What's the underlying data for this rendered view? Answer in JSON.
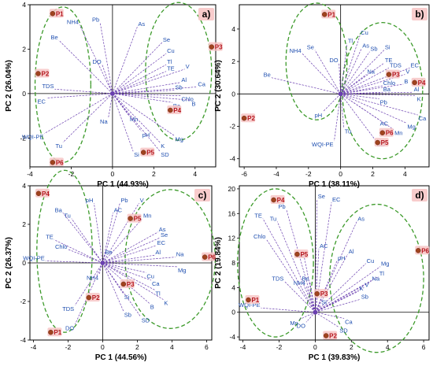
{
  "chart_data": [
    {
      "type": "scatter",
      "panel": "a)",
      "xlabel": "PC 1 (44.93%)",
      "ylabel": "PC 2 (26.04%)",
      "xlim": [
        -4,
        5
      ],
      "ylim": [
        -3.3,
        4
      ],
      "xticks": [
        -4,
        -2,
        0,
        2,
        4
      ],
      "yticks": [
        -2,
        0,
        2,
        4
      ],
      "observations": [
        {
          "label": "P1",
          "x": -2.9,
          "y": 3.6
        },
        {
          "label": "P2",
          "x": -3.6,
          "y": 0.9
        },
        {
          "label": "P3",
          "x": 4.8,
          "y": 2.1
        },
        {
          "label": "P4",
          "x": 2.8,
          "y": -0.75
        },
        {
          "label": "P5",
          "x": 1.5,
          "y": -2.65
        },
        {
          "label": "P6",
          "x": -2.9,
          "y": -3.1
        }
      ],
      "variables": [
        {
          "label": "NH4",
          "x": -1.6,
          "y": 3.1
        },
        {
          "label": "Pb",
          "x": -0.6,
          "y": 3.2
        },
        {
          "label": "As",
          "x": 1.2,
          "y": 3.0
        },
        {
          "label": "Be",
          "x": -2.6,
          "y": 2.4
        },
        {
          "label": "Se",
          "x": 2.4,
          "y": 2.3
        },
        {
          "label": "Cu",
          "x": 2.6,
          "y": 1.8
        },
        {
          "label": "DO",
          "x": -0.5,
          "y": 1.3
        },
        {
          "label": "Tl",
          "x": 2.6,
          "y": 1.3
        },
        {
          "label": "V",
          "x": 3.5,
          "y": 1.1
        },
        {
          "label": "TE",
          "x": 2.6,
          "y": 1.0
        },
        {
          "label": "TDS",
          "x": -2.8,
          "y": 0.2
        },
        {
          "label": "Al",
          "x": 3.3,
          "y": 0.5
        },
        {
          "label": "Ca",
          "x": 4.1,
          "y": 0.3
        },
        {
          "label": "EC",
          "x": -3.2,
          "y": -0.2
        },
        {
          "label": "Sb",
          "x": 3.0,
          "y": 0.15
        },
        {
          "label": "Chlo",
          "x": 3.3,
          "y": -0.1
        },
        {
          "label": "B",
          "x": 3.8,
          "y": -0.3
        },
        {
          "label": "Ba",
          "x": 2.9,
          "y": -0.4
        },
        {
          "label": "Na",
          "x": -0.2,
          "y": -1.1
        },
        {
          "label": "Mn",
          "x": 0.8,
          "y": -1.0
        },
        {
          "label": "pH",
          "x": 1.4,
          "y": -1.7
        },
        {
          "label": "Mg",
          "x": 3.0,
          "y": -1.9
        },
        {
          "label": "WQI-PE",
          "x": -3.3,
          "y": -1.8
        },
        {
          "label": "Tu",
          "x": -2.4,
          "y": -2.2
        },
        {
          "label": "Si",
          "x": 1.0,
          "y": -2.6
        },
        {
          "label": "SD",
          "x": 2.3,
          "y": -2.6
        },
        {
          "label": "K",
          "x": 2.3,
          "y": -2.2
        }
      ]
    },
    {
      "type": "scatter",
      "panel": "b)",
      "xlabel": "PC 1 (38.11%)",
      "ylabel": "PC 2 (30.64%)",
      "xlim": [
        -6.3,
        5.5
      ],
      "ylim": [
        -4.5,
        5.5
      ],
      "xticks": [
        -6,
        -4,
        -2,
        0,
        2,
        4
      ],
      "yticks": [
        -4,
        -2,
        0,
        2,
        4
      ],
      "observations": [
        {
          "label": "P1",
          "x": -1.0,
          "y": 4.9
        },
        {
          "label": "P2",
          "x": -6.0,
          "y": -1.5
        },
        {
          "label": "P3",
          "x": 3.0,
          "y": 1.2
        },
        {
          "label": "P4",
          "x": 4.6,
          "y": 0.7
        },
        {
          "label": "P5",
          "x": 2.3,
          "y": -3.0
        },
        {
          "label": "P6",
          "x": 2.6,
          "y": -2.4
        }
      ],
      "variables": [
        {
          "label": "Se",
          "x": -1.6,
          "y": 2.7
        },
        {
          "label": "NH4",
          "x": -2.4,
          "y": 2.5
        },
        {
          "label": "Cu",
          "x": 1.2,
          "y": 3.6
        },
        {
          "label": "Tl",
          "x": 0.4,
          "y": 3.1
        },
        {
          "label": "As",
          "x": 1.3,
          "y": 2.8
        },
        {
          "label": "Sb",
          "x": 1.8,
          "y": 2.6
        },
        {
          "label": "Si",
          "x": 2.7,
          "y": 2.7
        },
        {
          "label": "Be",
          "x": -4.3,
          "y": 1.0
        },
        {
          "label": "DO",
          "x": -0.1,
          "y": 1.9
        },
        {
          "label": "TE",
          "x": 2.7,
          "y": 1.9
        },
        {
          "label": "TDS",
          "x": 3.0,
          "y": 1.6
        },
        {
          "label": "EC",
          "x": 4.3,
          "y": 1.6
        },
        {
          "label": "Na",
          "x": 1.6,
          "y": 1.2
        },
        {
          "label": "V",
          "x": 4.0,
          "y": 1.2
        },
        {
          "label": "B",
          "x": 3.9,
          "y": 0.6
        },
        {
          "label": "Chlo",
          "x": 2.6,
          "y": 0.5
        },
        {
          "label": "Al",
          "x": 4.5,
          "y": 0.1
        },
        {
          "label": "Ba",
          "x": 2.6,
          "y": 0.1
        },
        {
          "label": "K",
          "x": 4.7,
          "y": -0.1
        },
        {
          "label": "Pb",
          "x": 2.4,
          "y": -0.3
        },
        {
          "label": "pH",
          "x": -1.1,
          "y": -1.1
        },
        {
          "label": "Ca",
          "x": 4.8,
          "y": -1.3
        },
        {
          "label": "AC",
          "x": 2.4,
          "y": -1.6
        },
        {
          "label": "Mg",
          "x": 4.1,
          "y": -1.8
        },
        {
          "label": "Tu",
          "x": 0.2,
          "y": -2.1
        },
        {
          "label": "Mn",
          "x": 3.3,
          "y": -2.2
        },
        {
          "label": "WQI-PE",
          "x": -0.4,
          "y": -2.9
        },
        {
          "label": "SD",
          "x": 2.2,
          "y": -2.9
        }
      ]
    },
    {
      "type": "scatter",
      "panel": "c)",
      "xlabel": "PC 1 (44.56%)",
      "ylabel": "PC 2 (26.37%)",
      "xlim": [
        -4.2,
        6.3
      ],
      "ylim": [
        -4,
        4
      ],
      "xticks": [
        -4,
        -2,
        0,
        2,
        4,
        6
      ],
      "yticks": [
        -4,
        -2,
        0,
        2,
        4
      ],
      "observations": [
        {
          "label": "P1",
          "x": -3.0,
          "y": -3.6
        },
        {
          "label": "P2",
          "x": -0.8,
          "y": -1.8
        },
        {
          "label": "P3",
          "x": 1.2,
          "y": -1.1
        },
        {
          "label": "P4",
          "x": -3.7,
          "y": 3.6
        },
        {
          "label": "P5",
          "x": 1.6,
          "y": 2.3
        },
        {
          "label": "P6",
          "x": 5.9,
          "y": 0.3
        }
      ],
      "variables": [
        {
          "label": "pH",
          "x": -0.5,
          "y": 3.1
        },
        {
          "label": "Pb",
          "x": 1.0,
          "y": 3.1
        },
        {
          "label": "V",
          "x": 2.1,
          "y": 3.1
        },
        {
          "label": "Ba",
          "x": -2.3,
          "y": 2.6
        },
        {
          "label": "AC",
          "x": 0.6,
          "y": 2.6
        },
        {
          "label": "Tu",
          "x": -1.8,
          "y": 2.3
        },
        {
          "label": "Mn",
          "x": 2.3,
          "y": 2.3
        },
        {
          "label": "As",
          "x": 3.2,
          "y": 1.6
        },
        {
          "label": "Se",
          "x": 3.3,
          "y": 1.3
        },
        {
          "label": "TE",
          "x": -2.8,
          "y": 1.2
        },
        {
          "label": "EC",
          "x": 3.1,
          "y": 0.9
        },
        {
          "label": "Chlo",
          "x": -2.0,
          "y": 0.7
        },
        {
          "label": "Be",
          "x": 0.1,
          "y": 0.4
        },
        {
          "label": "Al",
          "x": 3.0,
          "y": 0.4
        },
        {
          "label": "WQI-PE",
          "x": -3.3,
          "y": 0.1
        },
        {
          "label": "Na",
          "x": 4.2,
          "y": 0.3
        },
        {
          "label": "Mg",
          "x": 4.3,
          "y": -0.2
        },
        {
          "label": "NH4",
          "x": -0.2,
          "y": -0.6
        },
        {
          "label": "Cu",
          "x": 2.5,
          "y": -0.5
        },
        {
          "label": "Ca",
          "x": 2.8,
          "y": -0.9
        },
        {
          "label": "Tl",
          "x": 3.0,
          "y": -1.4
        },
        {
          "label": "Si",
          "x": 1.2,
          "y": -1.6
        },
        {
          "label": "K",
          "x": 3.5,
          "y": -1.9
        },
        {
          "label": "B",
          "x": 2.7,
          "y": -2.1
        },
        {
          "label": "TDS",
          "x": -1.6,
          "y": -2.2
        },
        {
          "label": "Sb",
          "x": 1.2,
          "y": -2.5
        },
        {
          "label": "SD",
          "x": 2.2,
          "y": -2.8
        },
        {
          "label": "DO",
          "x": -1.6,
          "y": -3.2
        }
      ]
    },
    {
      "type": "scatter",
      "panel": "d)",
      "xlabel": "PC 1 (39.83%)",
      "ylabel": "PC 2 (19.84%)",
      "xlim": [
        -4.2,
        6.3
      ],
      "ylim": [
        -4.5,
        20.5
      ],
      "xticks": [
        -4,
        -2,
        0,
        2,
        4,
        6
      ],
      "yticks": [
        -4,
        0,
        4,
        8,
        12,
        16,
        20
      ],
      "observations": [
        {
          "label": "P1",
          "x": -3.7,
          "y": 2.0
        },
        {
          "label": "P2",
          "x": 0.6,
          "y": -3.8
        },
        {
          "label": "P3",
          "x": 0.1,
          "y": 3.0
        },
        {
          "label": "P4",
          "x": -2.3,
          "y": 18.2
        },
        {
          "label": "P5",
          "x": -1.0,
          "y": 9.4
        },
        {
          "label": "P6",
          "x": 5.7,
          "y": 10.0
        }
      ],
      "variables": [
        {
          "label": "Se",
          "x": 0.1,
          "y": 18.3
        },
        {
          "label": "EC",
          "x": 0.9,
          "y": 17.8
        },
        {
          "label": "TE",
          "x": -2.9,
          "y": 15.2
        },
        {
          "label": "Pb",
          "x": -1.6,
          "y": 16.7
        },
        {
          "label": "Tu",
          "x": -2.1,
          "y": 14.7
        },
        {
          "label": "As",
          "x": 2.3,
          "y": 14.7
        },
        {
          "label": "Chlo",
          "x": -2.7,
          "y": 11.8
        },
        {
          "label": "AC",
          "x": 0.2,
          "y": 10.3
        },
        {
          "label": "Al",
          "x": 1.8,
          "y": 9.4
        },
        {
          "label": "Ba",
          "x": -0.6,
          "y": 8.8
        },
        {
          "label": "Cu",
          "x": 2.8,
          "y": 7.9
        },
        {
          "label": "pH",
          "x": 1.2,
          "y": 8.3
        },
        {
          "label": "Mg",
          "x": 3.6,
          "y": 7.4
        },
        {
          "label": "Tl",
          "x": 3.5,
          "y": 5.8
        },
        {
          "label": "TDS",
          "x": -1.7,
          "y": 5.0
        },
        {
          "label": "Be",
          "x": -0.3,
          "y": 5.0
        },
        {
          "label": "Na",
          "x": 3.1,
          "y": 5.0
        },
        {
          "label": "NH4",
          "x": -0.5,
          "y": 4.3
        },
        {
          "label": "V",
          "x": 2.7,
          "y": 4.0
        },
        {
          "label": "K",
          "x": 2.4,
          "y": 3.4
        },
        {
          "label": "WQI-PE",
          "x": -3.0,
          "y": 0.7
        },
        {
          "label": "Sb",
          "x": 2.5,
          "y": 2.1
        },
        {
          "label": "Si",
          "x": 0.3,
          "y": 1.2
        },
        {
          "label": "Mn",
          "x": -0.9,
          "y": -1.2
        },
        {
          "label": "DO",
          "x": -0.5,
          "y": -1.6
        },
        {
          "label": "Ca",
          "x": 1.6,
          "y": -1.0
        },
        {
          "label": "SD",
          "x": 1.3,
          "y": -2.4
        }
      ]
    }
  ]
}
